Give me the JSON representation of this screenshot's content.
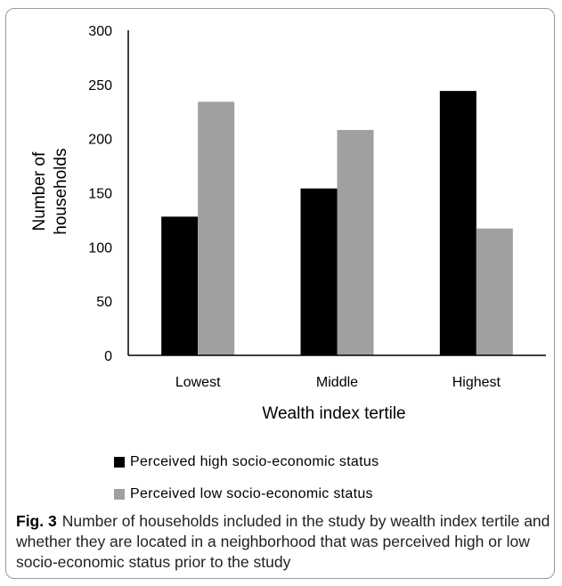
{
  "chart_data": {
    "type": "bar",
    "title": "",
    "xlabel": "Wealth index tertile",
    "ylabel_lines": [
      "Number of",
      "households"
    ],
    "categories": [
      "Lowest",
      "Middle",
      "Highest"
    ],
    "series": [
      {
        "name": "Perceived high socio-economic status",
        "values": [
          128,
          154,
          244
        ],
        "color": "#000000"
      },
      {
        "name": "Perceived low socio-economic status",
        "values": [
          234,
          208,
          117
        ],
        "color": "#a0a0a0"
      }
    ],
    "ylim": [
      0,
      300
    ],
    "yticks": [
      "0",
      "50",
      "100",
      "150",
      "200",
      "250",
      "300"
    ],
    "grid": false,
    "legend_placement": "bottom"
  },
  "caption": {
    "label": "Fig. 3",
    "text": "Number of households included in the study by wealth index tertile and whether they are located in a neighborhood that was perceived high or low socio-economic status prior to the study"
  }
}
